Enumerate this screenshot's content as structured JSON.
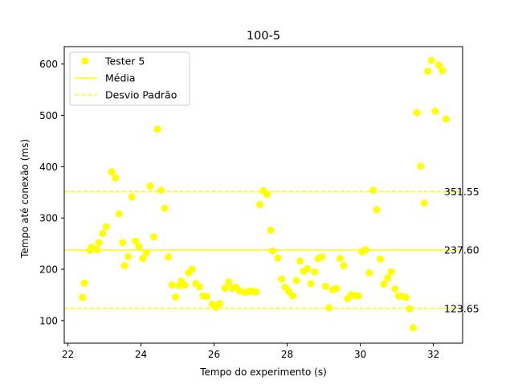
{
  "chart_data": {
    "type": "scatter",
    "title": "100-5",
    "xlabel": "Tempo do experimento (s)",
    "ylabel": "Tempo até conexão (ms)",
    "xlim": [
      21.9,
      32.8
    ],
    "ylim": [
      56,
      634
    ],
    "xticks": [
      22,
      24,
      26,
      28,
      30,
      32
    ],
    "yticks": [
      100,
      200,
      300,
      400,
      500,
      600
    ],
    "grid": false,
    "legend_position": "top-left",
    "colors": {
      "series": "#ffff00"
    },
    "legend": [
      {
        "label": "Tester 5",
        "kind": "marker"
      },
      {
        "label": "Média",
        "kind": "solid-line"
      },
      {
        "label": "Desvio Padrão",
        "kind": "dashed-line"
      }
    ],
    "reference_lines": [
      {
        "name": "upper-std",
        "value": 351.55,
        "label": "351.55",
        "style": "dashed"
      },
      {
        "name": "mean",
        "value": 237.6,
        "label": "237.60",
        "style": "solid"
      },
      {
        "name": "lower-std",
        "value": 123.65,
        "label": "123.65",
        "style": "dashed"
      }
    ],
    "series": [
      {
        "name": "Tester 5",
        "points": [
          [
            22.4,
            145
          ],
          [
            22.45,
            173
          ],
          [
            22.6,
            237
          ],
          [
            22.65,
            243
          ],
          [
            22.8,
            238
          ],
          [
            22.85,
            252
          ],
          [
            22.95,
            270
          ],
          [
            23.05,
            283
          ],
          [
            23.2,
            390
          ],
          [
            23.3,
            378
          ],
          [
            23.4,
            308
          ],
          [
            23.5,
            252
          ],
          [
            23.55,
            207
          ],
          [
            23.65,
            225
          ],
          [
            23.75,
            341
          ],
          [
            23.85,
            255
          ],
          [
            23.95,
            244
          ],
          [
            24.05,
            221
          ],
          [
            24.15,
            232
          ],
          [
            24.25,
            362
          ],
          [
            24.35,
            263
          ],
          [
            24.45,
            473
          ],
          [
            24.55,
            354
          ],
          [
            24.65,
            319
          ],
          [
            24.75,
            224
          ],
          [
            24.85,
            169
          ],
          [
            24.95,
            146
          ],
          [
            25.05,
            168
          ],
          [
            25.1,
            177
          ],
          [
            25.2,
            169
          ],
          [
            25.3,
            193
          ],
          [
            25.4,
            200
          ],
          [
            25.5,
            172
          ],
          [
            25.6,
            166
          ],
          [
            25.7,
            148
          ],
          [
            25.8,
            147
          ],
          [
            25.95,
            132
          ],
          [
            26.05,
            126
          ],
          [
            26.15,
            133
          ],
          [
            26.3,
            163
          ],
          [
            26.4,
            175
          ],
          [
            26.5,
            163
          ],
          [
            26.6,
            165
          ],
          [
            26.7,
            158
          ],
          [
            26.85,
            155
          ],
          [
            26.95,
            157
          ],
          [
            27.05,
            157
          ],
          [
            27.15,
            156
          ],
          [
            27.25,
            326
          ],
          [
            27.35,
            353
          ],
          [
            27.45,
            346
          ],
          [
            27.55,
            276
          ],
          [
            27.6,
            236
          ],
          [
            27.75,
            222
          ],
          [
            27.85,
            181
          ],
          [
            27.95,
            165
          ],
          [
            28.05,
            156
          ],
          [
            28.15,
            148
          ],
          [
            28.25,
            178
          ],
          [
            28.35,
            216
          ],
          [
            28.45,
            196
          ],
          [
            28.55,
            201
          ],
          [
            28.65,
            172
          ],
          [
            28.75,
            195
          ],
          [
            28.85,
            221
          ],
          [
            28.95,
            224
          ],
          [
            29.05,
            167
          ],
          [
            29.15,
            125
          ],
          [
            29.25,
            160
          ],
          [
            29.35,
            163
          ],
          [
            29.45,
            221
          ],
          [
            29.55,
            207
          ],
          [
            29.65,
            143
          ],
          [
            29.75,
            150
          ],
          [
            29.85,
            149
          ],
          [
            29.95,
            148
          ],
          [
            30.05,
            234
          ],
          [
            30.15,
            238
          ],
          [
            30.25,
            193
          ],
          [
            30.35,
            354
          ],
          [
            30.45,
            316
          ],
          [
            30.55,
            220
          ],
          [
            30.65,
            171
          ],
          [
            30.75,
            183
          ],
          [
            30.85,
            195
          ],
          [
            30.95,
            162
          ],
          [
            31.05,
            148
          ],
          [
            31.15,
            147
          ],
          [
            31.25,
            145
          ],
          [
            31.35,
            123
          ],
          [
            31.45,
            86
          ],
          [
            31.55,
            505
          ],
          [
            31.65,
            401
          ],
          [
            31.75,
            329
          ],
          [
            31.85,
            586
          ],
          [
            31.95,
            607
          ],
          [
            32.05,
            508
          ],
          [
            32.15,
            598
          ],
          [
            32.25,
            587
          ],
          [
            32.35,
            493
          ]
        ]
      }
    ]
  }
}
